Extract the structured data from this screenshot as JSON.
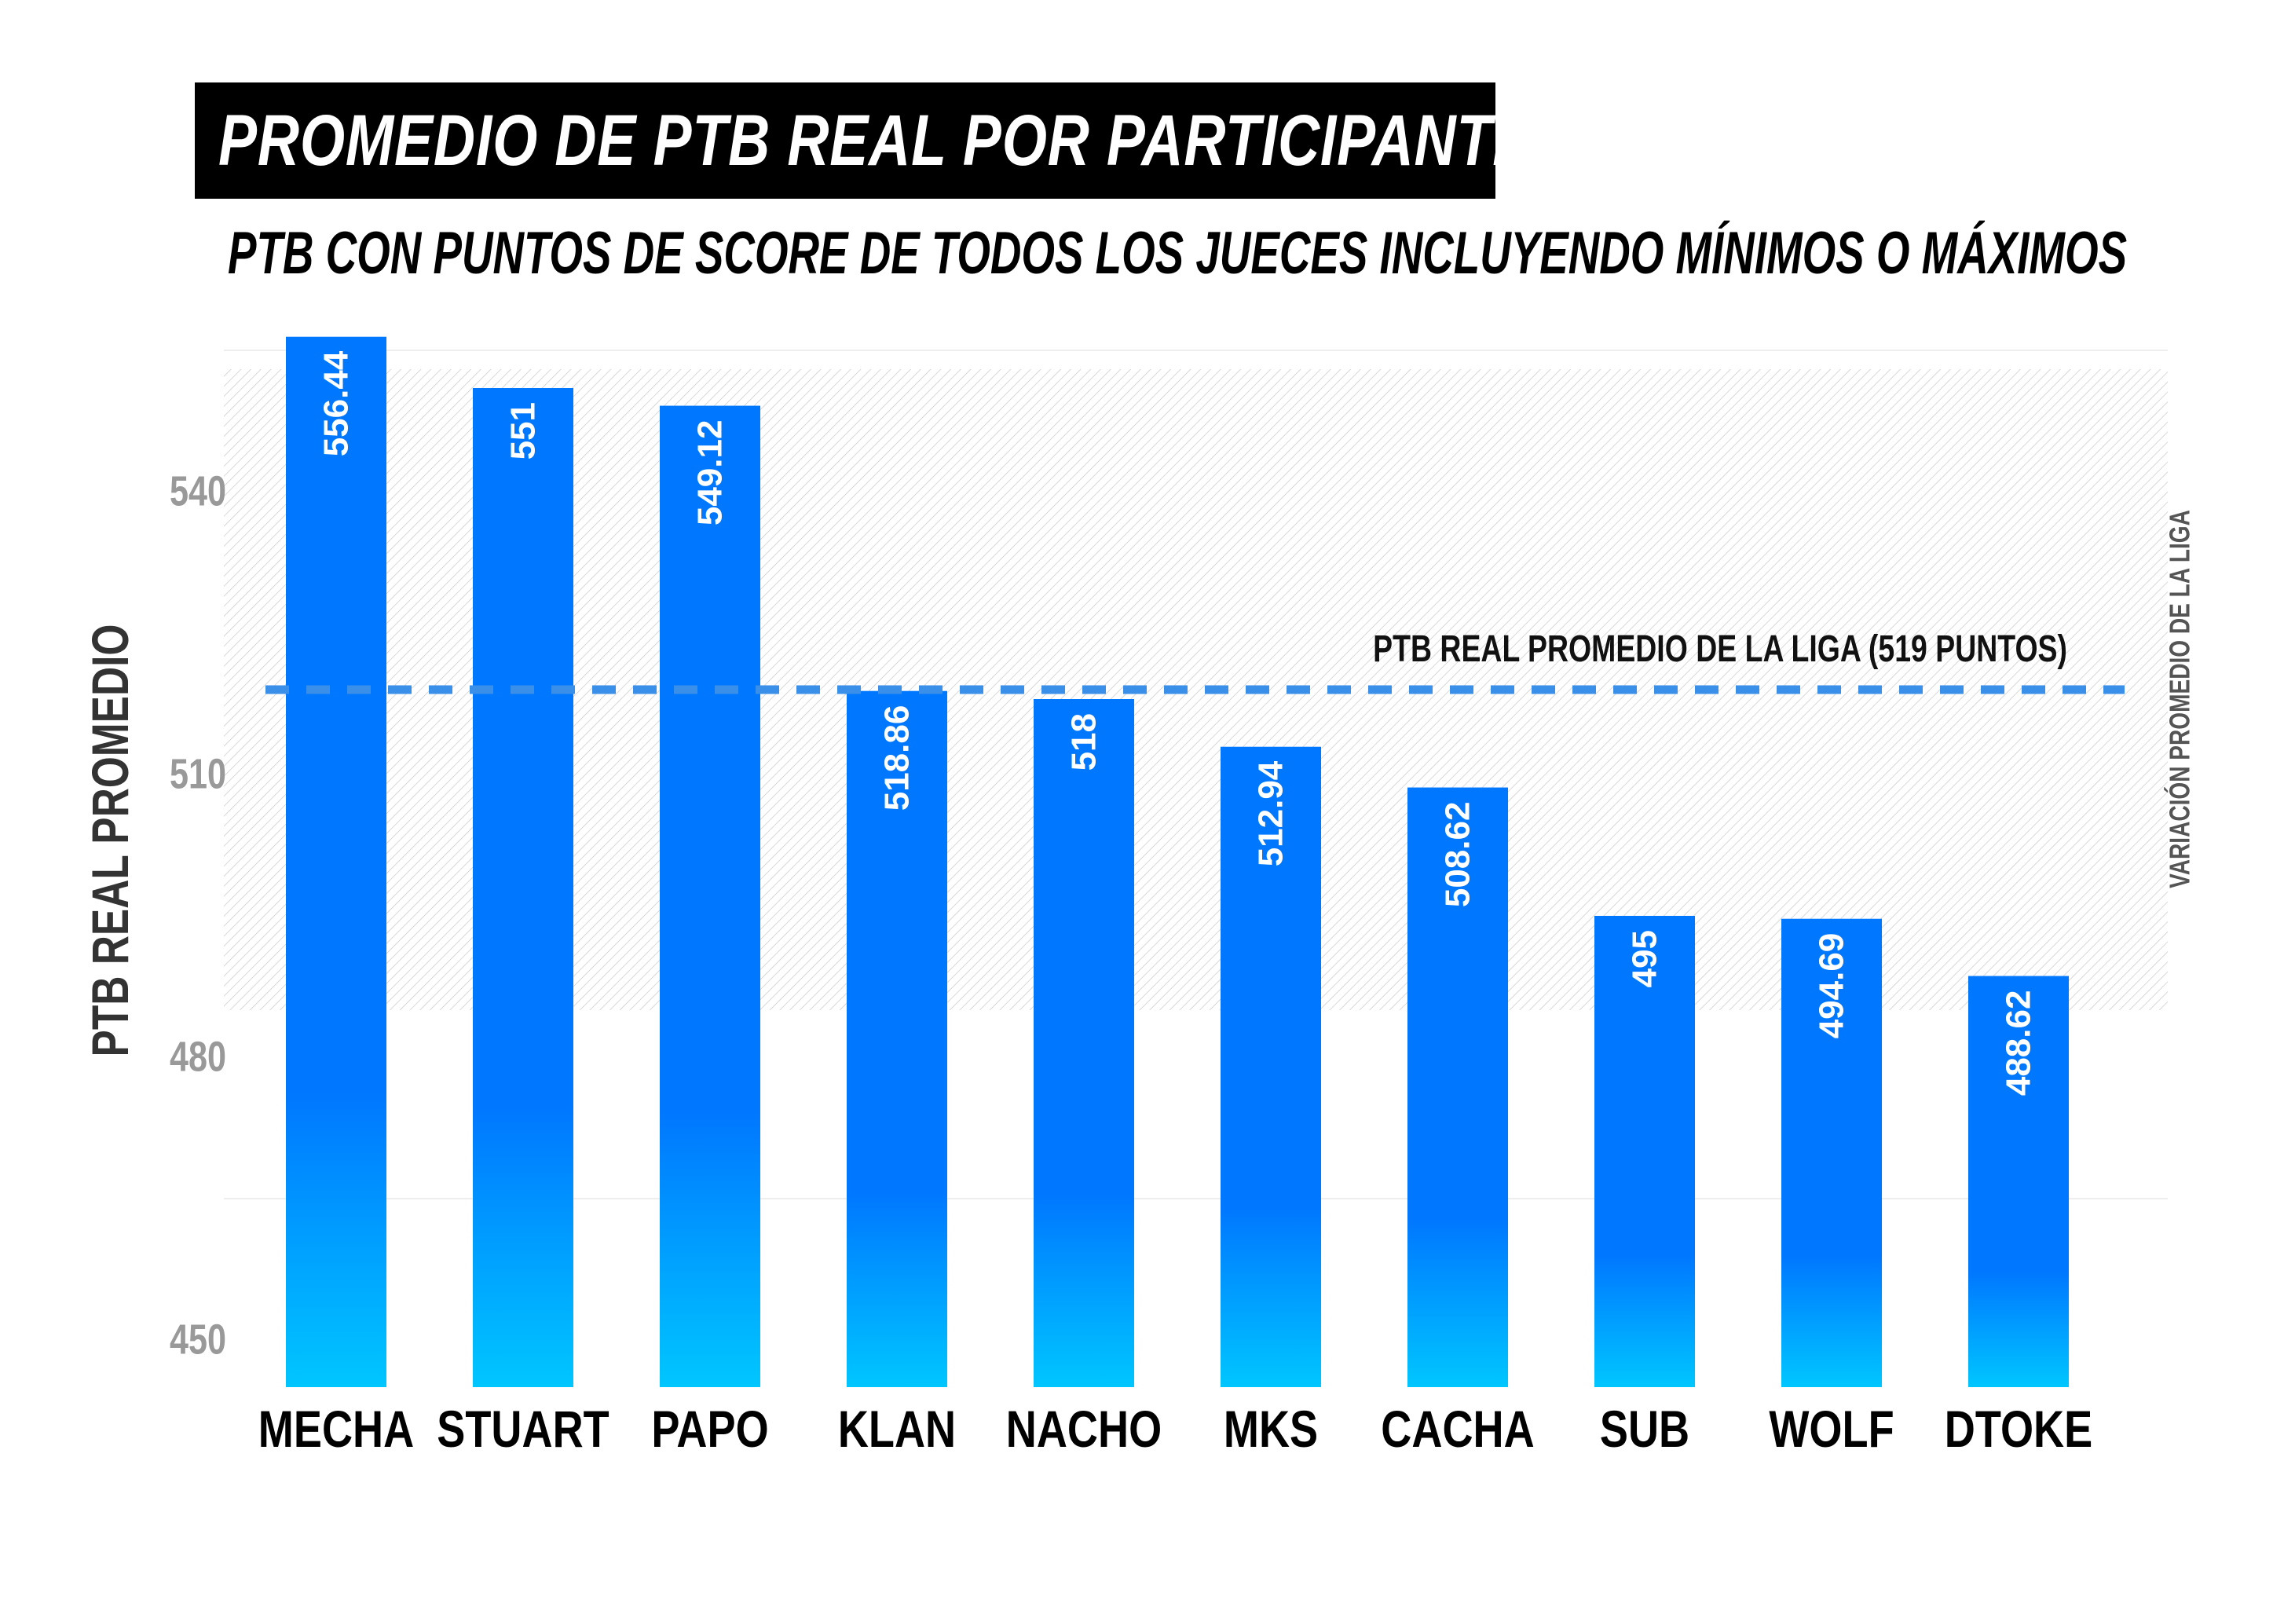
{
  "title": "PROMEDIO DE PTB REAL POR PARTICIPANTE",
  "subtitle": "PTB CON PUNTOS DE SCORE DE TODOS LOS JUECES INCLUYENDO MÍNIMOS O MÁXIMOS",
  "colors": {
    "bar_top": "#0077FF",
    "bar_bottom": "#00C6FF",
    "average_line": "#3A8FE8",
    "axis_tick_text": "#999999",
    "ylabel_text": "#333333",
    "band_hatch": "#9A9A9A",
    "right_label_text": "#555555"
  },
  "chart_data": {
    "type": "bar",
    "title": "PROMEDIO DE PTB REAL POR PARTICIPANTE",
    "subtitle": "PTB CON PUNTOS DE SCORE DE TODOS LOS JUECES INCLUYENDO MÍNIMOS O MÁXIMOS",
    "xlabel": "",
    "ylabel": "PTB REAL PROMEDIO",
    "categories": [
      "MECHA",
      "STUART",
      "PAPO",
      "KLAN",
      "NACHO",
      "MKS",
      "CACHA",
      "SUB",
      "WOLF",
      "DTOKE"
    ],
    "values": [
      556.44,
      551,
      549.12,
      518.86,
      518,
      512.94,
      508.62,
      495,
      494.69,
      488.62
    ],
    "value_labels": [
      "556.44",
      "551",
      "549.12",
      "518.86",
      "518",
      "512.94",
      "508.62",
      "495",
      "494.69",
      "488.62"
    ],
    "ylim": [
      445,
      560
    ],
    "yticks": [
      450,
      480,
      510,
      540
    ],
    "grid": true,
    "average_line": {
      "value": 519,
      "label": "PTB REAL PROMEDIO DE LA LIGA (519 PUNTOS)"
    },
    "variation_band": {
      "from": 485,
      "to": 553,
      "label": "VARIACIÓN PROMEDIO DE LA LIGA"
    }
  }
}
